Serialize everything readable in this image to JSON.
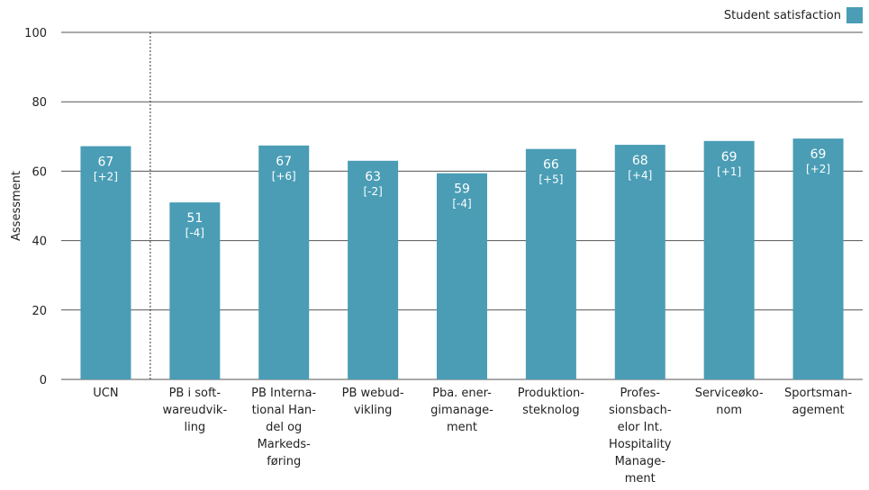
{
  "chart_data": {
    "type": "bar",
    "categories": [
      [
        "UCN"
      ],
      [
        "PB i soft-",
        "wareudvik-",
        "ling"
      ],
      [
        "PB Interna-",
        "tional Han-",
        "del og",
        "Markeds-",
        "føring"
      ],
      [
        "PB webud-",
        "vikling"
      ],
      [
        "Pba. ener-",
        "gimanage-",
        "ment"
      ],
      [
        "Produktion-",
        "steknolog"
      ],
      [
        "Profes-",
        "sionsbach-",
        "elor Int.",
        "Hospitality",
        "Manage-",
        "ment"
      ],
      [
        "Serviceøko-",
        "nom"
      ],
      [
        "Sportsman-",
        "agement"
      ]
    ],
    "series": [
      {
        "name": "Student satisfaction",
        "values": [
          67.2,
          51.0,
          67.4,
          63.0,
          59.4,
          66.4,
          67.6,
          68.7,
          69.4
        ],
        "labels": [
          "67",
          "51",
          "67",
          "63",
          "59",
          "66",
          "68",
          "69",
          "69"
        ],
        "deltas": [
          "[+2]",
          "[-4]",
          "[+6]",
          "[-2]",
          "[-4]",
          "[+5]",
          "[+4]",
          "[+1]",
          "[+2]"
        ],
        "color": "#4a9db5"
      }
    ],
    "ylabel": "Assessment",
    "ylim": [
      0,
      100
    ],
    "yticks": [
      "0",
      "20",
      "40",
      "60",
      "80",
      "100"
    ],
    "grid": true,
    "legend": "top-right",
    "separator_after_index": 0
  }
}
